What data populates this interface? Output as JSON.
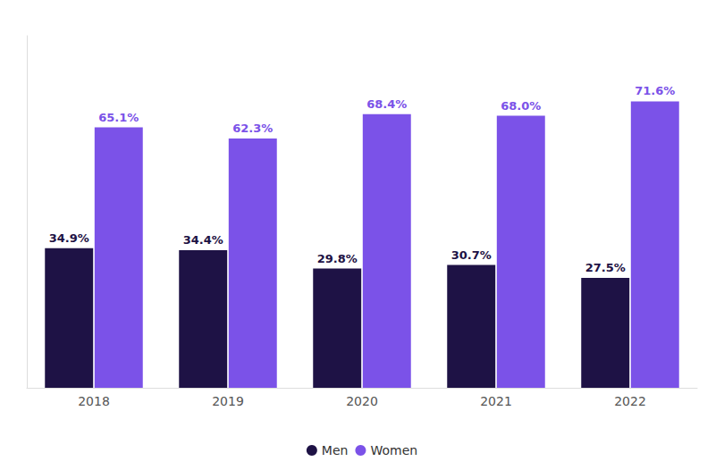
{
  "chart_data": {
    "type": "bar",
    "categories": [
      "2018",
      "2019",
      "2020",
      "2021",
      "2022"
    ],
    "series": [
      {
        "name": "Men",
        "color": "#1e1245",
        "values": [
          34.9,
          34.4,
          29.8,
          30.7,
          27.5
        ],
        "value_labels": [
          "34.9%",
          "34.4%",
          "29.8%",
          "30.7%",
          "27.5%"
        ]
      },
      {
        "name": "Women",
        "color": "#7b52e8",
        "values": [
          65.1,
          62.3,
          68.4,
          68.0,
          71.6
        ],
        "value_labels": [
          "65.1%",
          "62.3%",
          "68.4%",
          "68.0%",
          "71.6%"
        ]
      }
    ],
    "ylim": [
      0,
      88
    ],
    "yticks": [],
    "grid": false,
    "legend": "bottom",
    "data_labels": true,
    "tick_labels": "x"
  }
}
